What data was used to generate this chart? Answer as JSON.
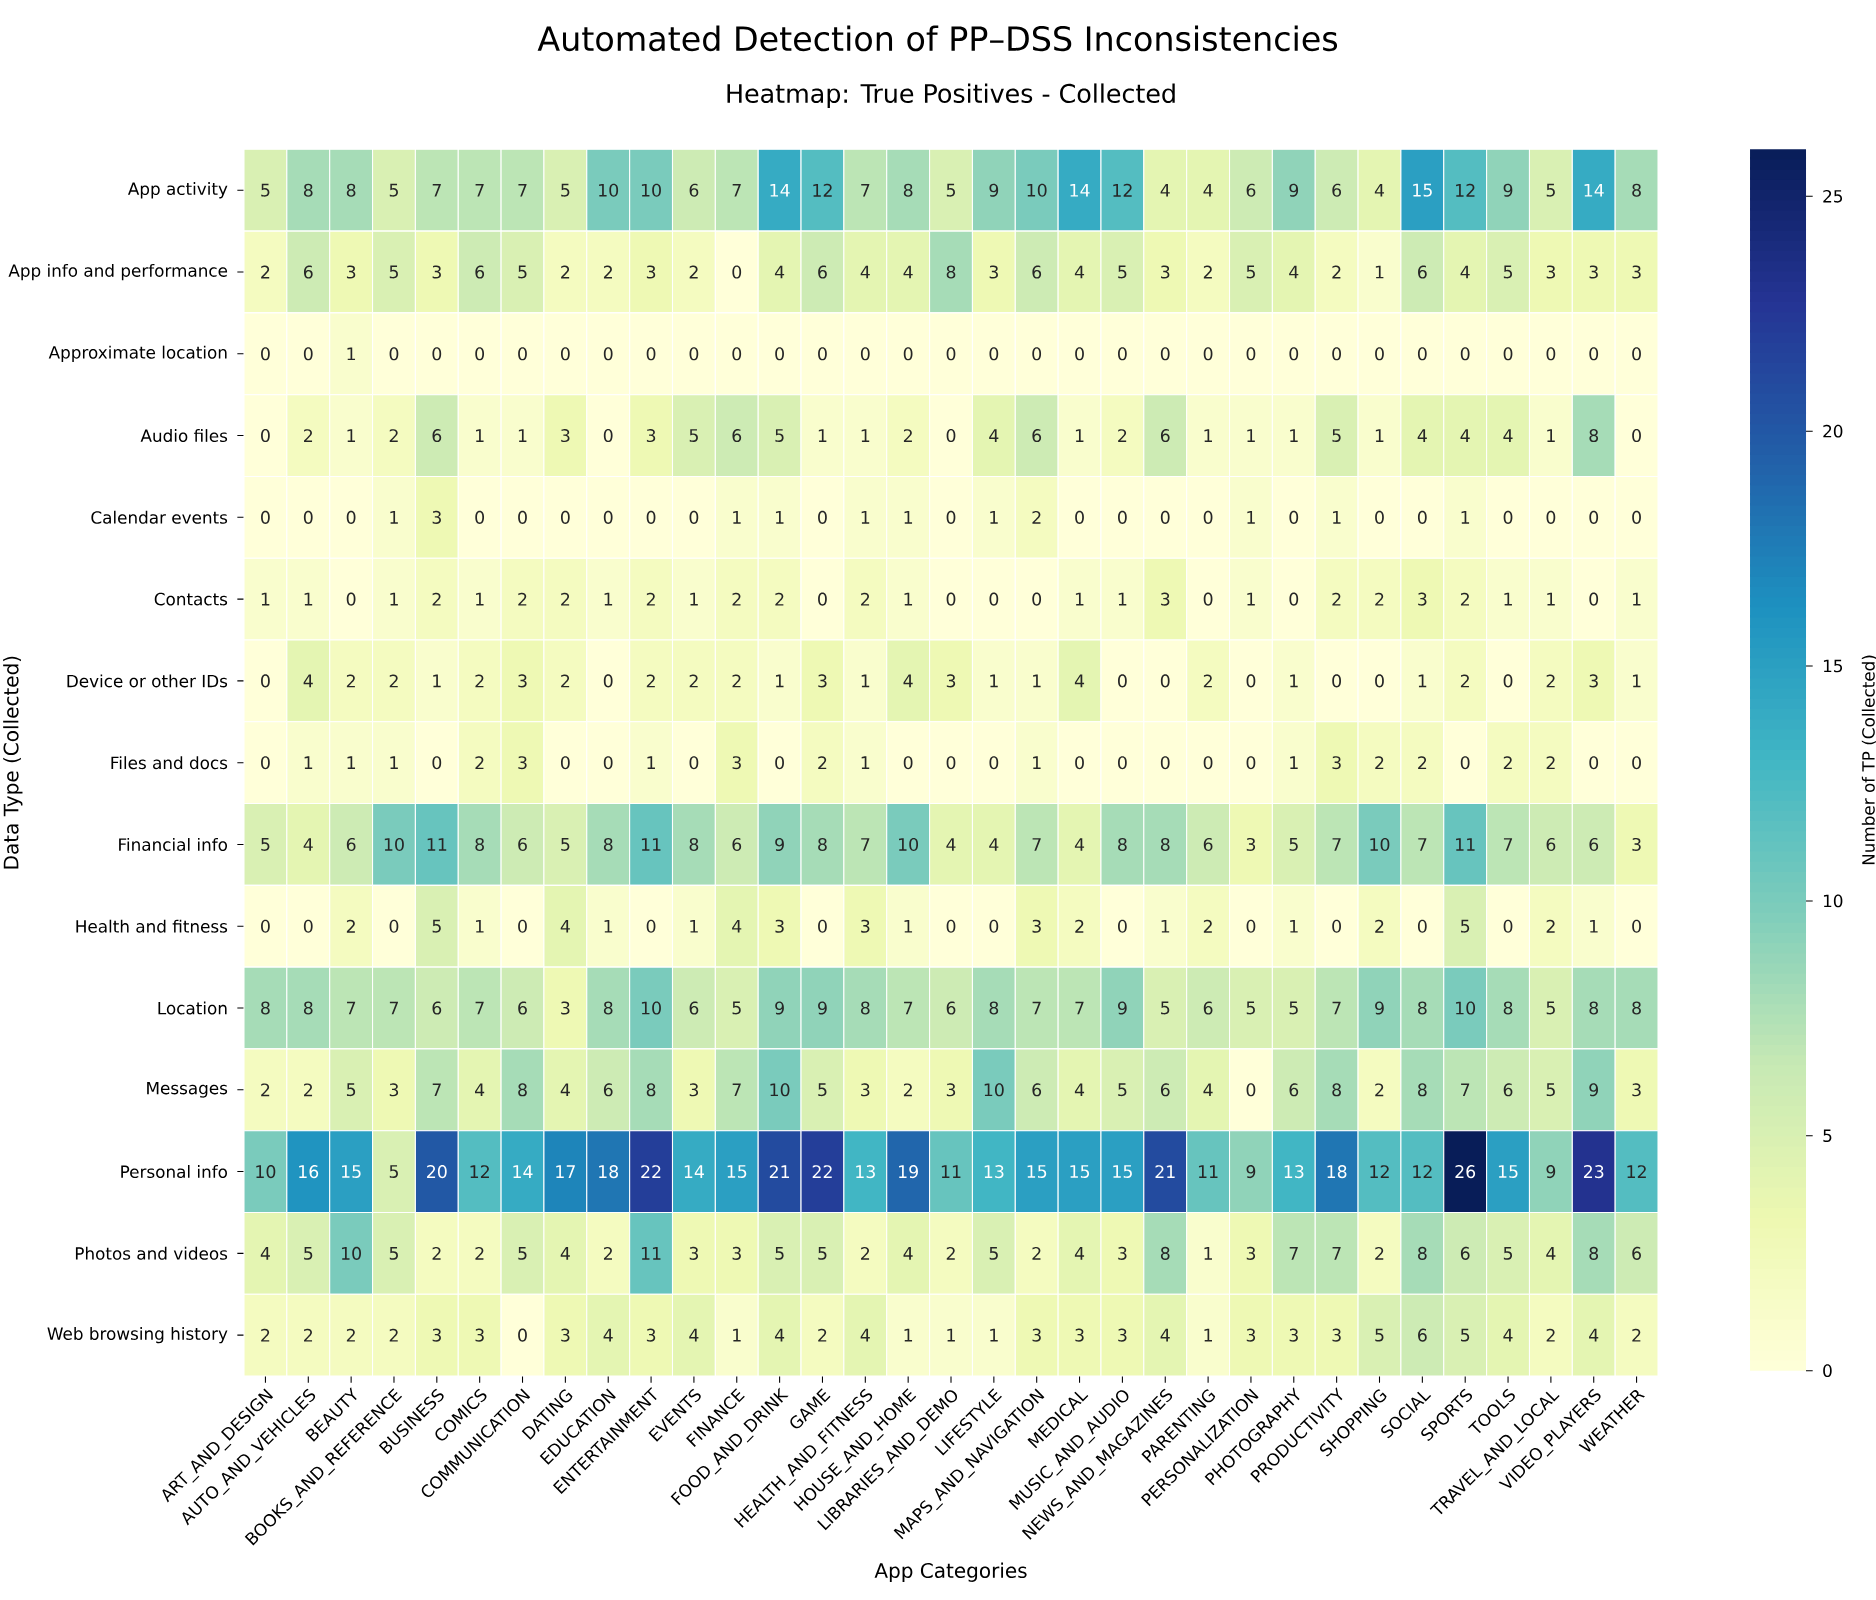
{
  "chart_data": {
    "type": "heatmap",
    "title": "Automated Detection of PP–DSS Inconsistencies",
    "subtitle": "Heatmap: True Positives - Collected",
    "xlabel": "App Categories",
    "ylabel": "Data Type (Collected)",
    "clabel": "Number of TP (Collected)",
    "categories": [
      "ART_AND_DESIGN",
      "AUTO_AND_VEHICLES",
      "BEAUTY",
      "BOOKS_AND_REFERENCE",
      "BUSINESS",
      "COMICS",
      "COMMUNICATION",
      "DATING",
      "EDUCATION",
      "ENTERTAINMENT",
      "EVENTS",
      "FINANCE",
      "FOOD_AND_DRINK",
      "GAME",
      "HEALTH_AND_FITNESS",
      "HOUSE_AND_HOME",
      "LIBRARIES_AND_DEMO",
      "LIFESTYLE",
      "MAPS_AND_NAVIGATION",
      "MEDICAL",
      "MUSIC_AND_AUDIO",
      "NEWS_AND_MAGAZINES",
      "PARENTING",
      "PERSONALIZATION",
      "PHOTOGRAPHY",
      "PRODUCTIVITY",
      "SHOPPING",
      "SOCIAL",
      "SPORTS",
      "TOOLS",
      "TRAVEL_AND_LOCAL",
      "VIDEO_PLAYERS",
      "WEATHER"
    ],
    "y_categories": [
      "App activity",
      "App info and performance",
      "Approximate location",
      "Audio files",
      "Calendar events",
      "Contacts",
      "Device or other IDs",
      "Files and docs",
      "Financial info",
      "Health and fitness",
      "Location",
      "Messages",
      "Personal info",
      "Photos and videos",
      "Web browsing history"
    ],
    "cells": [
      [
        5,
        8,
        8,
        5,
        7,
        7,
        7,
        5,
        10,
        10,
        6,
        7,
        14,
        12,
        7,
        8,
        5,
        9,
        10,
        14,
        12,
        4,
        4,
        6,
        9,
        6,
        4,
        15,
        12,
        9,
        5,
        14,
        8
      ],
      [
        2,
        6,
        3,
        5,
        3,
        6,
        5,
        2,
        2,
        3,
        2,
        0,
        4,
        6,
        4,
        4,
        8,
        3,
        6,
        4,
        5,
        3,
        2,
        5,
        4,
        2,
        1,
        6,
        4,
        5,
        3,
        3,
        3
      ],
      [
        0,
        0,
        1,
        0,
        0,
        0,
        0,
        0,
        0,
        0,
        0,
        0,
        0,
        0,
        0,
        0,
        0,
        0,
        0,
        0,
        0,
        0,
        0,
        0,
        0,
        0,
        0,
        0,
        0,
        0,
        0,
        0,
        0
      ],
      [
        0,
        2,
        1,
        2,
        6,
        1,
        1,
        3,
        0,
        3,
        5,
        6,
        5,
        1,
        1,
        2,
        0,
        4,
        6,
        1,
        2,
        6,
        1,
        1,
        1,
        5,
        1,
        4,
        4,
        4,
        1,
        8,
        0
      ],
      [
        0,
        0,
        0,
        1,
        3,
        0,
        0,
        0,
        0,
        0,
        0,
        1,
        1,
        0,
        1,
        1,
        0,
        1,
        2,
        0,
        0,
        0,
        0,
        1,
        0,
        1,
        0,
        0,
        1,
        0,
        0,
        0,
        0
      ],
      [
        1,
        1,
        0,
        1,
        2,
        1,
        2,
        2,
        1,
        2,
        1,
        2,
        2,
        0,
        2,
        1,
        0,
        0,
        0,
        1,
        1,
        3,
        0,
        1,
        0,
        2,
        2,
        3,
        2,
        1,
        1,
        0,
        1
      ],
      [
        0,
        4,
        2,
        2,
        1,
        2,
        3,
        2,
        0,
        2,
        2,
        2,
        1,
        3,
        1,
        4,
        3,
        1,
        1,
        4,
        0,
        0,
        2,
        0,
        1,
        0,
        0,
        1,
        2,
        0,
        2,
        3,
        1
      ],
      [
        0,
        1,
        1,
        1,
        0,
        2,
        3,
        0,
        0,
        1,
        0,
        3,
        0,
        2,
        1,
        0,
        0,
        0,
        1,
        0,
        0,
        0,
        0,
        0,
        1,
        3,
        2,
        2,
        0,
        2,
        2,
        0,
        0
      ],
      [
        5,
        4,
        6,
        10,
        11,
        8,
        6,
        5,
        8,
        11,
        8,
        6,
        9,
        8,
        7,
        10,
        4,
        4,
        7,
        4,
        8,
        8,
        6,
        3,
        5,
        7,
        10,
        7,
        11,
        7,
        6,
        6,
        3
      ],
      [
        0,
        0,
        2,
        0,
        5,
        1,
        0,
        4,
        1,
        0,
        1,
        4,
        3,
        0,
        3,
        1,
        0,
        0,
        3,
        2,
        0,
        1,
        2,
        0,
        1,
        0,
        2,
        0,
        5,
        0,
        2,
        1,
        0
      ],
      [
        8,
        8,
        7,
        7,
        6,
        7,
        6,
        3,
        8,
        10,
        6,
        5,
        9,
        9,
        8,
        7,
        6,
        8,
        7,
        7,
        9,
        5,
        6,
        5,
        5,
        7,
        9,
        8,
        10,
        8,
        5,
        8,
        8
      ],
      [
        2,
        2,
        5,
        3,
        7,
        4,
        8,
        4,
        6,
        8,
        3,
        7,
        10,
        5,
        3,
        2,
        3,
        10,
        6,
        4,
        5,
        6,
        4,
        0,
        6,
        8,
        2,
        8,
        7,
        6,
        5,
        9,
        3
      ],
      [
        10,
        16,
        15,
        5,
        20,
        12,
        14,
        17,
        18,
        22,
        14,
        15,
        21,
        22,
        13,
        19,
        11,
        13,
        15,
        15,
        15,
        21,
        11,
        9,
        13,
        18,
        12,
        12,
        26,
        15,
        9,
        23,
        12
      ],
      [
        4,
        5,
        10,
        5,
        2,
        2,
        5,
        4,
        2,
        11,
        3,
        3,
        5,
        5,
        2,
        4,
        2,
        5,
        2,
        4,
        3,
        8,
        1,
        3,
        7,
        7,
        2,
        8,
        6,
        5,
        4,
        8,
        6
      ],
      [
        2,
        2,
        2,
        2,
        3,
        3,
        0,
        3,
        4,
        3,
        4,
        1,
        4,
        2,
        4,
        1,
        1,
        1,
        3,
        3,
        3,
        4,
        1,
        3,
        3,
        3,
        5,
        6,
        5,
        4,
        2,
        4,
        2
      ]
    ],
    "clim": [
      0,
      26
    ],
    "cticks": [
      0,
      5,
      10,
      15,
      20,
      25
    ],
    "data_labels": true
  }
}
